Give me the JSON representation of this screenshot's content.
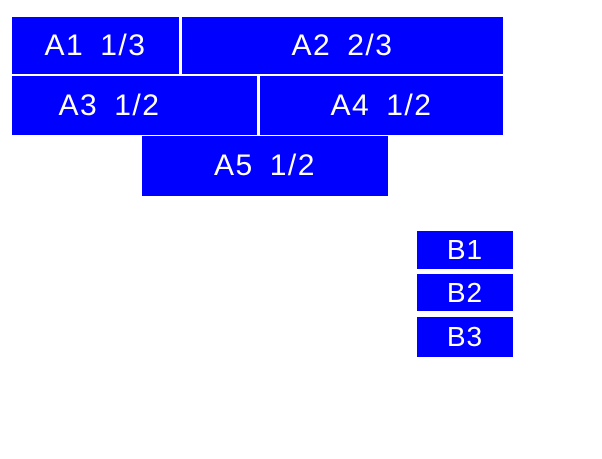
{
  "colors": {
    "box_fill": "#0000fe",
    "box_text": "#ffffff",
    "page_background": "#ffffff"
  },
  "group_a": {
    "items": [
      {
        "name": "A1",
        "fraction": "1/3"
      },
      {
        "name": "A2",
        "fraction": "2/3"
      },
      {
        "name": "A3",
        "fraction": "1/2"
      },
      {
        "name": "A4",
        "fraction": "1/2"
      },
      {
        "name": "A5",
        "fraction": "1/2"
      }
    ]
  },
  "group_b": {
    "items": [
      {
        "label": "B1"
      },
      {
        "label": "B2"
      },
      {
        "label": "B3"
      }
    ]
  }
}
